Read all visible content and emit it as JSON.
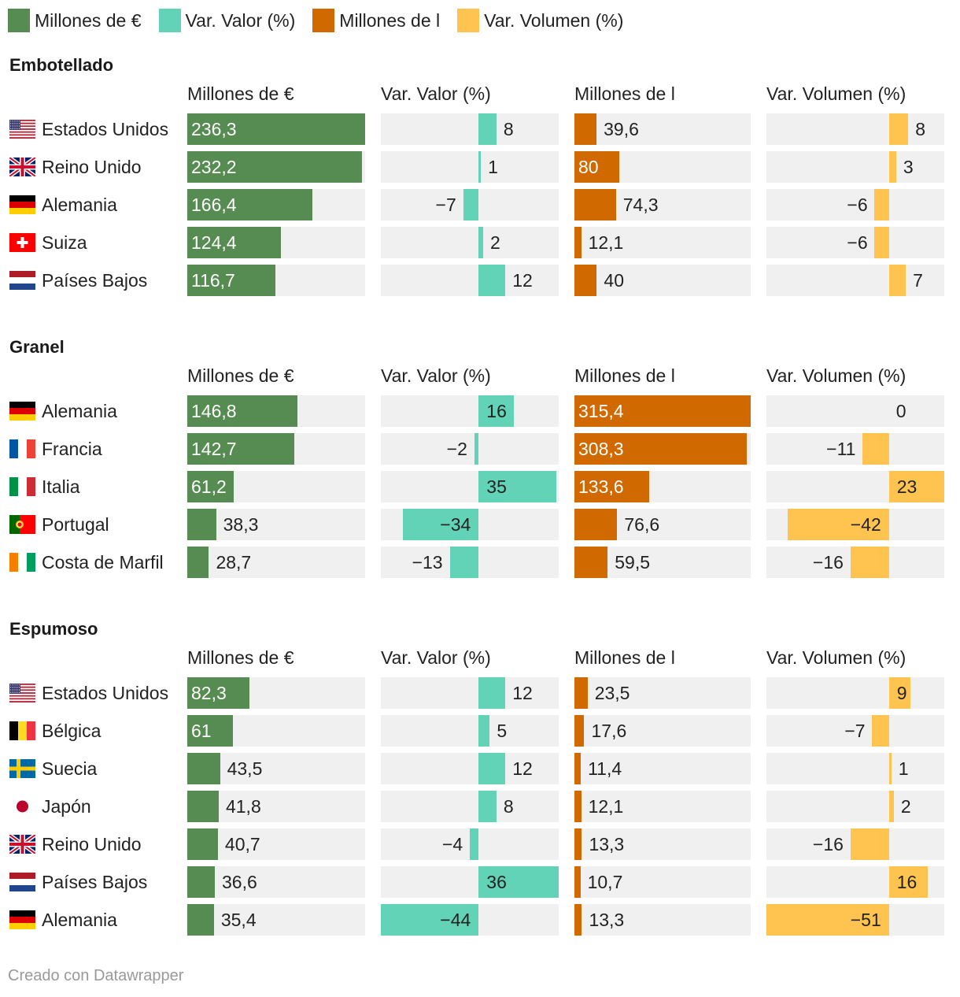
{
  "colors": {
    "eur": "#568c51",
    "var_valor": "#62d3b6",
    "litros": "#d06a00",
    "var_volumen": "#ffc34f",
    "cell_bg": "#f0f0f0"
  },
  "legend": [
    {
      "label": "Millones de €",
      "color": "#568c51"
    },
    {
      "label": "Var. Valor (%)",
      "color": "#62d3b6"
    },
    {
      "label": "Millones de l",
      "color": "#d06a00"
    },
    {
      "label": "Var. Volumen (%)",
      "color": "#ffc34f"
    }
  ],
  "chart_data": {
    "type": "table",
    "columns": [
      "Millones de €",
      "Var. Valor (%)",
      "Millones de l",
      "Var. Volumen (%)"
    ],
    "scales": {
      "eur_max": 236.3,
      "var_valor_range": [
        -44,
        36
      ],
      "litros_max": 315.4,
      "var_volumen_range": [
        -51,
        23
      ]
    },
    "sections": [
      {
        "title": "Embotellado",
        "rows": [
          {
            "country": "Estados Unidos",
            "flag": "us-flag-icon",
            "eur": 236.3,
            "eur_label": "236,3",
            "var_valor": 8,
            "var_valor_label": "8",
            "litros": 39.6,
            "litros_label": "39,6",
            "var_volumen": 8,
            "var_volumen_label": "8"
          },
          {
            "country": "Reino Unido",
            "flag": "uk-flag-icon",
            "eur": 232.2,
            "eur_label": "232,2",
            "var_valor": 1,
            "var_valor_label": "1",
            "litros": 80,
            "litros_label": "80",
            "var_volumen": 3,
            "var_volumen_label": "3"
          },
          {
            "country": "Alemania",
            "flag": "de-flag-icon",
            "eur": 166.4,
            "eur_label": "166,4",
            "var_valor": -7,
            "var_valor_label": "−7",
            "litros": 74.3,
            "litros_label": "74,3",
            "var_volumen": -6,
            "var_volumen_label": "−6"
          },
          {
            "country": "Suiza",
            "flag": "ch-flag-icon",
            "eur": 124.4,
            "eur_label": "124,4",
            "var_valor": 2,
            "var_valor_label": "2",
            "litros": 12.1,
            "litros_label": "12,1",
            "var_volumen": -6,
            "var_volumen_label": "−6"
          },
          {
            "country": "Países Bajos",
            "flag": "nl-flag-icon",
            "eur": 116.7,
            "eur_label": "116,7",
            "var_valor": 12,
            "var_valor_label": "12",
            "litros": 40,
            "litros_label": "40",
            "var_volumen": 7,
            "var_volumen_label": "7"
          }
        ]
      },
      {
        "title": "Granel",
        "rows": [
          {
            "country": "Alemania",
            "flag": "de-flag-icon",
            "eur": 146.8,
            "eur_label": "146,8",
            "var_valor": 16,
            "var_valor_label": "16",
            "litros": 315.4,
            "litros_label": "315,4",
            "var_volumen": 0,
            "var_volumen_label": "0"
          },
          {
            "country": "Francia",
            "flag": "fr-flag-icon",
            "eur": 142.7,
            "eur_label": "142,7",
            "var_valor": -2,
            "var_valor_label": "−2",
            "litros": 308.3,
            "litros_label": "308,3",
            "var_volumen": -11,
            "var_volumen_label": "−11"
          },
          {
            "country": "Italia",
            "flag": "it-flag-icon",
            "eur": 61.2,
            "eur_label": "61,2",
            "var_valor": 35,
            "var_valor_label": "35",
            "litros": 133.6,
            "litros_label": "133,6",
            "var_volumen": 23,
            "var_volumen_label": "23"
          },
          {
            "country": "Portugal",
            "flag": "pt-flag-icon",
            "eur": 38.3,
            "eur_label": "38,3",
            "var_valor": -34,
            "var_valor_label": "−34",
            "litros": 76.6,
            "litros_label": "76,6",
            "var_volumen": -42,
            "var_volumen_label": "−42"
          },
          {
            "country": "Costa de Marfil",
            "flag": "ci-flag-icon",
            "eur": 28.7,
            "eur_label": "28,7",
            "var_valor": -13,
            "var_valor_label": "−13",
            "litros": 59.5,
            "litros_label": "59,5",
            "var_volumen": -16,
            "var_volumen_label": "−16"
          }
        ]
      },
      {
        "title": "Espumoso",
        "rows": [
          {
            "country": "Estados Unidos",
            "flag": "us-flag-icon",
            "eur": 82.3,
            "eur_label": "82,3",
            "var_valor": 12,
            "var_valor_label": "12",
            "litros": 23.5,
            "litros_label": "23,5",
            "var_volumen": 9,
            "var_volumen_label": "9"
          },
          {
            "country": "Bélgica",
            "flag": "be-flag-icon",
            "eur": 61,
            "eur_label": "61",
            "var_valor": 5,
            "var_valor_label": "5",
            "litros": 17.6,
            "litros_label": "17,6",
            "var_volumen": -7,
            "var_volumen_label": "−7"
          },
          {
            "country": "Suecia",
            "flag": "se-flag-icon",
            "eur": 43.5,
            "eur_label": "43,5",
            "var_valor": 12,
            "var_valor_label": "12",
            "litros": 11.4,
            "litros_label": "11,4",
            "var_volumen": 1,
            "var_volumen_label": "1"
          },
          {
            "country": "Japón",
            "flag": "jp-flag-icon",
            "eur": 41.8,
            "eur_label": "41,8",
            "var_valor": 8,
            "var_valor_label": "8",
            "litros": 12.1,
            "litros_label": "12,1",
            "var_volumen": 2,
            "var_volumen_label": "2"
          },
          {
            "country": "Reino Unido",
            "flag": "uk-flag-icon",
            "eur": 40.7,
            "eur_label": "40,7",
            "var_valor": -4,
            "var_valor_label": "−4",
            "litros": 13.3,
            "litros_label": "13,3",
            "var_volumen": -16,
            "var_volumen_label": "−16"
          },
          {
            "country": "Países Bajos",
            "flag": "nl-flag-icon",
            "eur": 36.6,
            "eur_label": "36,6",
            "var_valor": 36,
            "var_valor_label": "36",
            "litros": 10.7,
            "litros_label": "10,7",
            "var_volumen": 16,
            "var_volumen_label": "16"
          },
          {
            "country": "Alemania",
            "flag": "de-flag-icon",
            "eur": 35.4,
            "eur_label": "35,4",
            "var_valor": -44,
            "var_valor_label": "−44",
            "litros": 13.3,
            "litros_label": "13,3",
            "var_volumen": -51,
            "var_volumen_label": "−51"
          }
        ]
      }
    ]
  },
  "credit": "Creado con Datawrapper"
}
